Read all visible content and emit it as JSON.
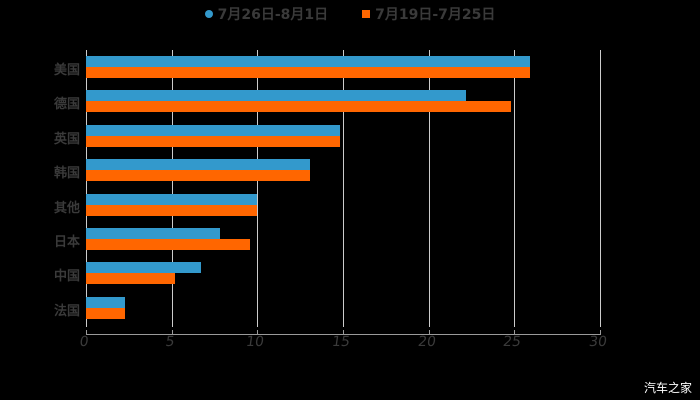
{
  "chart_data": {
    "type": "bar",
    "orientation": "horizontal",
    "title": "",
    "xlabel": "",
    "ylabel": "",
    "categories": [
      "美国",
      "德国",
      "英国",
      "韩国",
      "其他",
      "日本",
      "中国",
      "法国"
    ],
    "series": [
      {
        "name": "7月26日-8月1日",
        "color": "#3399cc",
        "values": [
          25.9,
          22.2,
          14.8,
          13.1,
          10.0,
          7.8,
          6.7,
          2.3
        ]
      },
      {
        "name": "7月19日-7月25日",
        "color": "#ff6600",
        "values": [
          25.9,
          24.8,
          14.8,
          13.1,
          10.0,
          9.6,
          5.2,
          2.3
        ]
      }
    ],
    "xlim": [
      0,
      30
    ],
    "xticks": [
      "0",
      "5",
      "10",
      "15",
      "20",
      "25",
      "30"
    ],
    "grid": true,
    "legend_position": "top"
  },
  "legend": {
    "series0": "7月26日-8月1日",
    "series1": "7月19日-7月25日"
  },
  "watermark": "汽车之家"
}
